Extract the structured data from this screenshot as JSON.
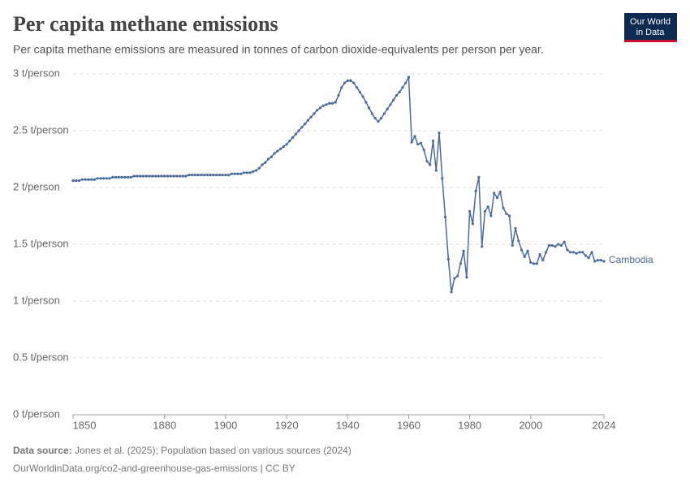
{
  "chart_data": {
    "type": "line",
    "title": "Per capita methane emissions",
    "subtitle": "Per capita methane emissions are measured in tonnes of carbon dioxide-equivalents per person per year.",
    "logo": [
      "Our World",
      "in Data"
    ],
    "source_label": "Data source:",
    "source": "Jones et al. (2025); Population based on various sources (2024)",
    "url": "OurWorldinData.org/co2-and-greenhouse-gas-emissions | CC BY",
    "xlim": [
      1850,
      2024
    ],
    "xticks": [
      1850,
      1880,
      1900,
      1920,
      1940,
      1960,
      1980,
      2000,
      2024
    ],
    "ylim": [
      0,
      3
    ],
    "yticks": [
      {
        "value": 0,
        "label": "0 t/person"
      },
      {
        "value": 0.5,
        "label": "0.5 t/person"
      },
      {
        "value": 1,
        "label": "1 t/person"
      },
      {
        "value": 1.5,
        "label": "1.5 t/person"
      },
      {
        "value": 2,
        "label": "2 t/person"
      },
      {
        "value": 2.5,
        "label": "2.5 t/person"
      },
      {
        "value": 3,
        "label": "3 t/person"
      }
    ],
    "grid": true,
    "x": [
      1850,
      1851,
      1852,
      1853,
      1854,
      1855,
      1856,
      1857,
      1858,
      1859,
      1860,
      1861,
      1862,
      1863,
      1864,
      1865,
      1866,
      1867,
      1868,
      1869,
      1870,
      1871,
      1872,
      1873,
      1874,
      1875,
      1876,
      1877,
      1878,
      1879,
      1880,
      1881,
      1882,
      1883,
      1884,
      1885,
      1886,
      1887,
      1888,
      1889,
      1890,
      1891,
      1892,
      1893,
      1894,
      1895,
      1896,
      1897,
      1898,
      1899,
      1900,
      1901,
      1902,
      1903,
      1904,
      1905,
      1906,
      1907,
      1908,
      1909,
      1910,
      1911,
      1912,
      1913,
      1914,
      1915,
      1916,
      1917,
      1918,
      1919,
      1920,
      1921,
      1922,
      1923,
      1924,
      1925,
      1926,
      1927,
      1928,
      1929,
      1930,
      1931,
      1932,
      1933,
      1934,
      1935,
      1936,
      1937,
      1938,
      1939,
      1940,
      1941,
      1942,
      1943,
      1944,
      1945,
      1946,
      1947,
      1948,
      1949,
      1950,
      1951,
      1952,
      1953,
      1954,
      1955,
      1956,
      1957,
      1958,
      1959,
      1960,
      1961,
      1962,
      1963,
      1964,
      1965,
      1966,
      1967,
      1968,
      1969,
      1970,
      1971,
      1972,
      1973,
      1974,
      1975,
      1976,
      1977,
      1978,
      1979,
      1980,
      1981,
      1982,
      1983,
      1984,
      1985,
      1986,
      1987,
      1988,
      1989,
      1990,
      1991,
      1992,
      1993,
      1994,
      1995,
      1996,
      1997,
      1998,
      1999,
      2000,
      2001,
      2002,
      2003,
      2004,
      2005,
      2006,
      2007,
      2008,
      2009,
      2010,
      2011,
      2012,
      2013,
      2014,
      2015,
      2016,
      2017,
      2018,
      2019,
      2020,
      2021,
      2022,
      2023,
      2024
    ],
    "series": [
      {
        "name": "Cambodia",
        "color": "#4c6a9c",
        "values": [
          2.06,
          2.06,
          2.06,
          2.07,
          2.07,
          2.07,
          2.07,
          2.07,
          2.08,
          2.08,
          2.08,
          2.08,
          2.08,
          2.09,
          2.09,
          2.09,
          2.09,
          2.09,
          2.09,
          2.09,
          2.1,
          2.1,
          2.1,
          2.1,
          2.1,
          2.1,
          2.1,
          2.1,
          2.1,
          2.1,
          2.1,
          2.1,
          2.1,
          2.1,
          2.1,
          2.1,
          2.1,
          2.1,
          2.11,
          2.11,
          2.11,
          2.11,
          2.11,
          2.11,
          2.11,
          2.11,
          2.11,
          2.11,
          2.11,
          2.11,
          2.11,
          2.11,
          2.12,
          2.12,
          2.12,
          2.12,
          2.13,
          2.13,
          2.13,
          2.14,
          2.15,
          2.17,
          2.2,
          2.22,
          2.25,
          2.27,
          2.3,
          2.32,
          2.34,
          2.36,
          2.38,
          2.41,
          2.44,
          2.47,
          2.5,
          2.53,
          2.56,
          2.59,
          2.62,
          2.65,
          2.68,
          2.7,
          2.72,
          2.73,
          2.74,
          2.74,
          2.75,
          2.81,
          2.88,
          2.92,
          2.94,
          2.94,
          2.92,
          2.88,
          2.84,
          2.8,
          2.75,
          2.7,
          2.65,
          2.61,
          2.58,
          2.61,
          2.65,
          2.69,
          2.73,
          2.77,
          2.81,
          2.84,
          2.88,
          2.92,
          2.97,
          2.4,
          2.45,
          2.38,
          2.39,
          2.33,
          2.23,
          2.2,
          2.41,
          2.15,
          2.48,
          2.08,
          1.74,
          1.37,
          1.08,
          1.2,
          1.22,
          1.33,
          1.44,
          1.21,
          1.79,
          1.68,
          1.97,
          2.09,
          1.48,
          1.79,
          1.83,
          1.75,
          1.95,
          1.91,
          1.96,
          1.82,
          1.77,
          1.75,
          1.49,
          1.64,
          1.53,
          1.45,
          1.39,
          1.44,
          1.34,
          1.33,
          1.33,
          1.41,
          1.36,
          1.43,
          1.49,
          1.49,
          1.48,
          1.5,
          1.49,
          1.52,
          1.45,
          1.43,
          1.43,
          1.42,
          1.43,
          1.43,
          1.4,
          1.38,
          1.43,
          1.35,
          1.36,
          1.36,
          1.35
        ]
      }
    ]
  }
}
